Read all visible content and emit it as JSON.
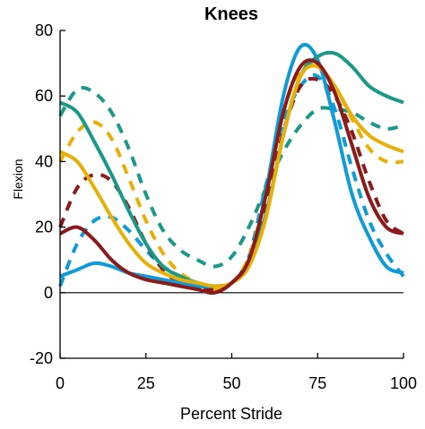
{
  "chart_data": {
    "type": "line",
    "title": "Knees",
    "xlabel": "Percent Stride",
    "ylabel": "Flexion",
    "xlim": [
      0,
      100
    ],
    "ylim": [
      -20,
      80
    ],
    "xticks": [
      "0",
      "25",
      "50",
      "75",
      "100"
    ],
    "yticks": [
      "-20",
      "0",
      "20",
      "40",
      "60",
      "80"
    ],
    "grid": false,
    "legend": "none",
    "zero_line": true,
    "x": [
      0,
      5,
      10,
      15,
      20,
      25,
      30,
      35,
      40,
      45,
      50,
      55,
      60,
      65,
      70,
      75,
      80,
      85,
      90,
      95,
      100
    ],
    "series": [
      {
        "color": "#0f9bd7",
        "dash": false,
        "values": [
          5,
          7,
          9,
          8,
          6,
          5,
          4,
          3,
          2,
          2,
          3,
          9,
          31,
          60,
          75,
          71,
          52,
          30,
          17,
          8,
          6
        ]
      },
      {
        "color": "#1a9988",
        "dash": false,
        "values": [
          58,
          55,
          46,
          36,
          25,
          15,
          8,
          5,
          3,
          2,
          3,
          9,
          24,
          48,
          66,
          72,
          73,
          69,
          63,
          60,
          58
        ]
      },
      {
        "color": "#e8b006",
        "dash": false,
        "values": [
          43,
          40,
          32,
          23,
          15,
          9,
          6,
          4,
          3,
          2,
          3,
          8,
          23,
          48,
          66,
          69,
          63,
          54,
          48,
          45,
          43
        ]
      },
      {
        "color": "#8b1a1a",
        "dash": false,
        "values": [
          18,
          20,
          16,
          10,
          6,
          4,
          3,
          2,
          1,
          0,
          3,
          10,
          30,
          55,
          69,
          70,
          61,
          45,
          29,
          20,
          18
        ]
      },
      {
        "color": "#0f9bd7",
        "dash": true,
        "values": [
          2,
          15,
          22,
          23,
          19,
          13,
          8,
          5,
          3,
          2,
          3,
          11,
          33,
          52,
          63,
          66,
          56,
          38,
          22,
          12,
          5
        ]
      },
      {
        "color": "#1a9988",
        "dash": true,
        "values": [
          54,
          62,
          61,
          55,
          44,
          30,
          19,
          13,
          10,
          8,
          11,
          20,
          32,
          43,
          51,
          56,
          56,
          55,
          52,
          50,
          51
        ]
      },
      {
        "color": "#e8b006",
        "dash": true,
        "values": [
          40,
          49,
          52,
          47,
          35,
          22,
          12,
          6,
          3,
          1,
          3,
          11,
          30,
          55,
          68,
          69,
          63,
          53,
          44,
          40,
          40
        ]
      },
      {
        "color": "#8b1a1a",
        "dash": true,
        "values": [
          20,
          32,
          36,
          34,
          26,
          15,
          7,
          3,
          2,
          1,
          3,
          10,
          27,
          49,
          63,
          65,
          60,
          49,
          34,
          22,
          18
        ]
      }
    ]
  }
}
